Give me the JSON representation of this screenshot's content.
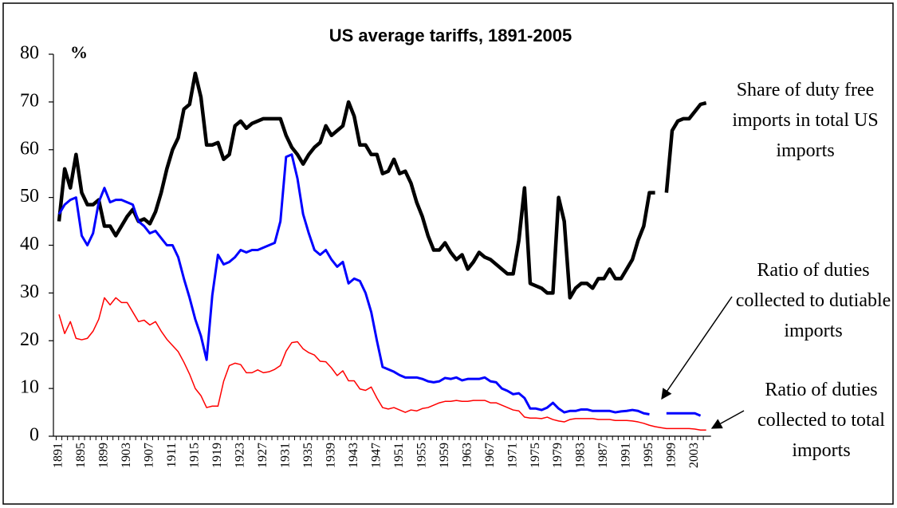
{
  "chart_data": {
    "type": "line",
    "title": "US average tariffs, 1891-2005",
    "y_label": "%",
    "categories": [
      "1891",
      null,
      null,
      null,
      "1895",
      null,
      null,
      null,
      "1899",
      null,
      null,
      null,
      "1903",
      null,
      null,
      null,
      "1907",
      null,
      null,
      null,
      "1911",
      null,
      null,
      null,
      "1915",
      null,
      null,
      null,
      "1919",
      null,
      null,
      null,
      "1923",
      null,
      null,
      null,
      "1927",
      null,
      null,
      null,
      "1931",
      null,
      null,
      null,
      "1935",
      null,
      null,
      null,
      "1939",
      null,
      null,
      null,
      "1943",
      null,
      null,
      null,
      "1947",
      null,
      null,
      null,
      "1951",
      null,
      null,
      null,
      "1955",
      null,
      null,
      null,
      "1959",
      null,
      null,
      null,
      "1963",
      null,
      null,
      null,
      "1967",
      null,
      null,
      null,
      "1971",
      null,
      null,
      null,
      "1975",
      null,
      null,
      null,
      "1979",
      null,
      null,
      null,
      "1983",
      null,
      null,
      null,
      "1987",
      null,
      null,
      null,
      "1991",
      null,
      null,
      null,
      "1995",
      null,
      null,
      null,
      "1999",
      null,
      null,
      null,
      "2003",
      null,
      null
    ],
    "series": [
      {
        "name": "Share of duty free imports in total US imports",
        "color": "#000000",
        "values": [
          45,
          56,
          52,
          59,
          51,
          48.5,
          48.5,
          49.5,
          44,
          44,
          42,
          44,
          46,
          47.5,
          45,
          45.5,
          44.5,
          47,
          51,
          56,
          60,
          62.5,
          68.5,
          69.5,
          76,
          71,
          61,
          61,
          61.5,
          58,
          59,
          65,
          66,
          64.5,
          65.5,
          66,
          66.5,
          66.5,
          66.5,
          66.5,
          63,
          60.5,
          59,
          57,
          59,
          60.5,
          61.5,
          65,
          63,
          64,
          65,
          70,
          67,
          61,
          61,
          59,
          59,
          55,
          55.5,
          58,
          55,
          55.5,
          53,
          49,
          46,
          42,
          39,
          39,
          40.5,
          38.5,
          37,
          38,
          35,
          36.5,
          38.5,
          37.5,
          37,
          36,
          35,
          34,
          34,
          41,
          52,
          32,
          31.5,
          31,
          30,
          30,
          50,
          45,
          29,
          31,
          32,
          32,
          31,
          33,
          33,
          35,
          33,
          33,
          35,
          37,
          41,
          44,
          51,
          51,
          null,
          51,
          64,
          66,
          66.5,
          66.5,
          68,
          69.5,
          69.8
        ]
      },
      {
        "name": "Ratio of duties collected to dutiable imports",
        "color": "#0000ff",
        "values": [
          46.5,
          48.5,
          49.5,
          50,
          42,
          40,
          42.5,
          49,
          52,
          49,
          49.5,
          49.5,
          49,
          48.5,
          45,
          44,
          42.5,
          43,
          41.5,
          40,
          40,
          37.5,
          33,
          29,
          24.5,
          21,
          16,
          29.5,
          38,
          36,
          36.5,
          37.5,
          39,
          38.5,
          39,
          39,
          39.5,
          40,
          40.5,
          45,
          58.5,
          59,
          54,
          46.5,
          42.5,
          39,
          38,
          39,
          37,
          35.5,
          36.5,
          32,
          33,
          32.5,
          30,
          26,
          20,
          14.5,
          14,
          13.5,
          12.8,
          12.3,
          12.3,
          12.3,
          12,
          11.5,
          11.3,
          11.5,
          12.2,
          12,
          12.3,
          11.7,
          12,
          12,
          12,
          12.3,
          11.5,
          11.3,
          10,
          9.5,
          8.8,
          9,
          8,
          5.8,
          5.8,
          5.5,
          6,
          7,
          5.8,
          5,
          5.3,
          5.3,
          5.6,
          5.6,
          5.3,
          5.3,
          5.3,
          5.3,
          5,
          5.2,
          5.3,
          5.5,
          5.3,
          4.8,
          4.6,
          null,
          null,
          4.8,
          4.8,
          4.8,
          4.8,
          4.8,
          4.8,
          4.3,
          null
        ]
      },
      {
        "name": "Ratio of duties collected to total imports",
        "color": "#ff0000",
        "values": [
          25.5,
          21.5,
          24,
          20.5,
          20.2,
          20.5,
          22,
          24.5,
          29,
          27.5,
          29,
          28,
          28,
          26,
          24,
          24.3,
          23.3,
          24,
          22,
          20.3,
          19,
          17.7,
          15.5,
          13,
          10,
          8.5,
          6,
          6.3,
          6.3,
          11.5,
          14.8,
          15.3,
          15,
          13.3,
          13.3,
          13.9,
          13.3,
          13.5,
          14,
          14.8,
          17.8,
          19.6,
          19.8,
          18.3,
          17.5,
          17,
          15.7,
          15.6,
          14.3,
          12.7,
          13.7,
          11.6,
          11.6,
          9.9,
          9.6,
          10.3,
          8,
          6,
          5.7,
          6,
          5.5,
          5,
          5.5,
          5.3,
          5.8,
          6,
          6.5,
          7,
          7.3,
          7.3,
          7.5,
          7.3,
          7.3,
          7.5,
          7.5,
          7.5,
          7,
          7,
          6.5,
          6,
          5.5,
          5.3,
          4,
          3.8,
          3.8,
          3.7,
          4,
          3.5,
          3.2,
          3,
          3.5,
          3.7,
          3.7,
          3.7,
          3.7,
          3.5,
          3.5,
          3.5,
          3.3,
          3.3,
          3.3,
          3.2,
          3,
          2.7,
          2.3,
          2,
          1.8,
          1.6,
          1.6,
          1.6,
          1.6,
          1.6,
          1.5,
          1.3,
          1.3
        ]
      }
    ],
    "ylim": [
      0,
      80
    ],
    "yticks": [
      0,
      10,
      20,
      30,
      40,
      50,
      60,
      70,
      80
    ],
    "grid": false
  }
}
